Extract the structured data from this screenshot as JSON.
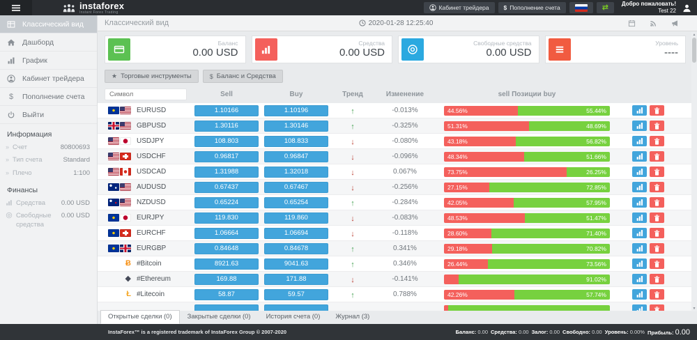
{
  "navbar": {
    "brand": "instaforex",
    "brand_sub": "Instant Forex Trading",
    "trader_cabinet": "Кабинет трейдера",
    "deposit": "Пополнение счета",
    "welcome_line1": "Добро пожаловать!",
    "welcome_line2": "Test 22"
  },
  "sidebar": {
    "items": [
      {
        "label": "Классический вид",
        "icon": "table",
        "active": true
      },
      {
        "label": "Дашборд",
        "icon": "home"
      },
      {
        "label": "График",
        "icon": "chart"
      },
      {
        "label": "Кабинет трейдера",
        "icon": "person"
      },
      {
        "label": "Пополнение счета",
        "icon": "dollar"
      },
      {
        "label": "Выйти",
        "icon": "power"
      }
    ],
    "info_heading": "Информация",
    "info_rows": [
      {
        "label": "Счет",
        "value": "80800693"
      },
      {
        "label": "Тип счета",
        "value": "Standard"
      },
      {
        "label": "Плечо",
        "value": "1:100"
      }
    ],
    "finance_heading": "Финансы",
    "finance_rows": [
      {
        "label": "Средства",
        "value": "0.00 USD",
        "icon": "chart"
      },
      {
        "label": "Свободные средства",
        "value": "0.00 USD",
        "icon": "coin"
      }
    ]
  },
  "content_header": {
    "title": "Классический вид",
    "datetime": "2020-01-28 12:25:40"
  },
  "cards": [
    {
      "label": "Баланс",
      "value": "0.00 USD",
      "color": "#5cc152",
      "icon": "credit"
    },
    {
      "label": "Средства",
      "value": "0.00 USD",
      "color": "#f4605c",
      "icon": "bars"
    },
    {
      "label": "Свободные средства",
      "value": "0.00 USD",
      "color": "#2ba9e0",
      "icon": "coin"
    },
    {
      "label": "Уровень",
      "value": "----",
      "color": "#f15b40",
      "icon": "list"
    }
  ],
  "toolbar": {
    "instruments_label": "Торговые инструменты",
    "balance_label": "Баланс и Средства"
  },
  "table": {
    "headers": {
      "symbol_placeholder": "Символ",
      "sell": "Sell",
      "buy": "Buy",
      "trend": "Тренд",
      "change": "Изменение",
      "positions": "sell Позиции buy"
    },
    "rows": [
      {
        "symbol": "EURUSD",
        "flags": [
          "eu",
          "us"
        ],
        "sell": "1.10166",
        "buy": "1.10196",
        "trend": "up",
        "change": "-0.013%",
        "sell_pct": 44.56,
        "buy_pct": 55.44,
        "sell_label": "44.56%",
        "buy_label": "55.44%"
      },
      {
        "symbol": "GBPUSD",
        "flags": [
          "gb",
          "us"
        ],
        "sell": "1.30116",
        "buy": "1.30146",
        "trend": "up",
        "change": "-0.325%",
        "sell_pct": 51.31,
        "buy_pct": 48.69,
        "sell_label": "51.31%",
        "buy_label": "48.69%"
      },
      {
        "symbol": "USDJPY",
        "flags": [
          "us",
          "jp"
        ],
        "sell": "108.803",
        "buy": "108.833",
        "trend": "down",
        "change": "-0.080%",
        "sell_pct": 43.18,
        "buy_pct": 56.82,
        "sell_label": "43.18%",
        "buy_label": "56.82%"
      },
      {
        "symbol": "USDCHF",
        "flags": [
          "us",
          "ch"
        ],
        "sell": "0.96817",
        "buy": "0.96847",
        "trend": "down",
        "change": "-0.096%",
        "sell_pct": 48.34,
        "buy_pct": 51.66,
        "sell_label": "48.34%",
        "buy_label": "51.66%"
      },
      {
        "symbol": "USDCAD",
        "flags": [
          "us",
          "ca"
        ],
        "sell": "1.31988",
        "buy": "1.32018",
        "trend": "down",
        "change": "0.067%",
        "sell_pct": 73.75,
        "buy_pct": 26.25,
        "sell_label": "73.75%",
        "buy_label": "26.25%"
      },
      {
        "symbol": "AUDUSD",
        "flags": [
          "au",
          "us"
        ],
        "sell": "0.67437",
        "buy": "0.67467",
        "trend": "down",
        "change": "-0.256%",
        "sell_pct": 27.15,
        "buy_pct": 72.85,
        "sell_label": "27.15%",
        "buy_label": "72.85%"
      },
      {
        "symbol": "NZDUSD",
        "flags": [
          "nz",
          "us"
        ],
        "sell": "0.65224",
        "buy": "0.65254",
        "trend": "up",
        "change": "-0.284%",
        "sell_pct": 42.05,
        "buy_pct": 57.95,
        "sell_label": "42.05%",
        "buy_label": "57.95%"
      },
      {
        "symbol": "EURJPY",
        "flags": [
          "eu",
          "jp"
        ],
        "sell": "119.830",
        "buy": "119.860",
        "trend": "down",
        "change": "-0.083%",
        "sell_pct": 48.53,
        "buy_pct": 51.47,
        "sell_label": "48.53%",
        "buy_label": "51.47%"
      },
      {
        "symbol": "EURCHF",
        "flags": [
          "eu",
          "ch"
        ],
        "sell": "1.06664",
        "buy": "1.06694",
        "trend": "down",
        "change": "-0.118%",
        "sell_pct": 28.6,
        "buy_pct": 71.4,
        "sell_label": "28.60%",
        "buy_label": "71.40%"
      },
      {
        "symbol": "EURGBP",
        "flags": [
          "eu",
          "gb"
        ],
        "sell": "0.84648",
        "buy": "0.84678",
        "trend": "up",
        "change": "0.341%",
        "sell_pct": 29.18,
        "buy_pct": 70.82,
        "sell_label": "29.18%",
        "buy_label": "70.82%"
      },
      {
        "symbol": "#Bitcoin",
        "crypto": {
          "char": "Ƀ",
          "color": "#f7931a",
          "name": "bitcoin-icon"
        },
        "sell": "8921.63",
        "buy": "9041.63",
        "trend": "up",
        "change": "0.346%",
        "sell_pct": 26.44,
        "buy_pct": 73.56,
        "sell_label": "26.44%",
        "buy_label": "73.56%"
      },
      {
        "symbol": "#Ethereum",
        "crypto": {
          "char": "◆",
          "color": "#454a58",
          "name": "ethereum-icon"
        },
        "sell": "169.88",
        "buy": "171.88",
        "trend": "down",
        "change": "-0.141%",
        "sell_pct": 8.98,
        "buy_pct": 91.02,
        "sell_label": "",
        "buy_label": "91.02%"
      },
      {
        "symbol": "#Litecoin",
        "crypto": {
          "char": "Ł",
          "color": "#f5a623",
          "name": "litecoin-icon"
        },
        "sell": "58.87",
        "buy": "59.57",
        "trend": "up",
        "change": "0.788%",
        "sell_pct": 42.26,
        "buy_pct": 57.74,
        "sell_label": "42.26%",
        "buy_label": "57.74%"
      },
      {
        "symbol": "",
        "sell": "",
        "buy": "",
        "trend": "",
        "change": "",
        "sell_pct": 2.5,
        "buy_pct": 97.5,
        "sell_label": "",
        "buy_label": "",
        "partial": true
      }
    ]
  },
  "tabs": [
    {
      "label": "Открытые сделки (0)",
      "active": true
    },
    {
      "label": "Закрытые сделки (0)"
    },
    {
      "label": "История счета (0)"
    },
    {
      "label": "Журнал (3)"
    }
  ],
  "footer": {
    "trademark": "InstaForex™ is a registered trademark of InstaForex Group © 2007-2020",
    "summary": [
      {
        "label": "Баланс:",
        "value": "0.00"
      },
      {
        "label": "Средства:",
        "value": "0.00"
      },
      {
        "label": "Залог:",
        "value": "0.00"
      },
      {
        "label": "Свободно:",
        "value": "0.00"
      },
      {
        "label": "Уровень:",
        "value": "0.00%"
      },
      {
        "label": "Прибыль:",
        "value": "0.00",
        "emphasis": true
      }
    ]
  }
}
